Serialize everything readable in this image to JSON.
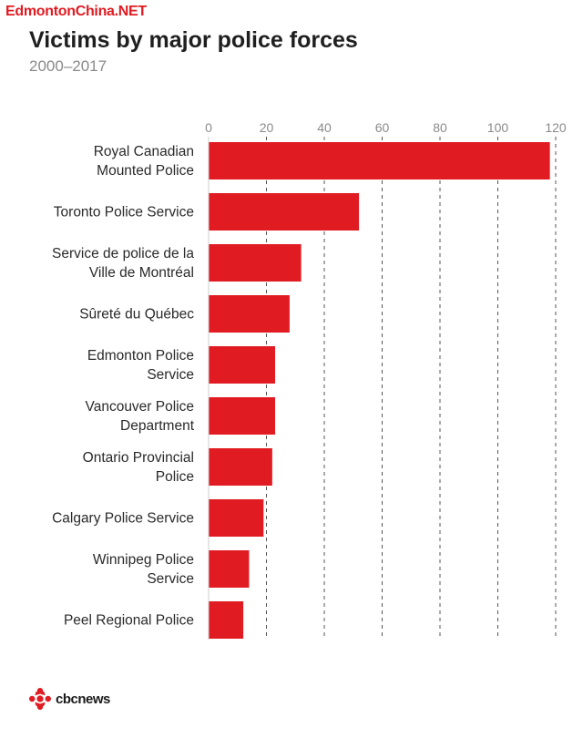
{
  "watermark": "EdmontonChina.NET",
  "footer": {
    "brand": "cbcnews"
  },
  "colors": {
    "bar": "#e01b22",
    "grid": "#555555",
    "axis_text": "#8a8a8a"
  },
  "chart_data": {
    "type": "bar",
    "orientation": "horizontal",
    "title": "Victims by major police forces",
    "subtitle": "2000–2017",
    "xlabel": "",
    "ylabel": "",
    "xlim": [
      0,
      120
    ],
    "xticks": [
      0,
      20,
      40,
      60,
      80,
      100,
      120
    ],
    "grid": true,
    "categories": [
      [
        "Royal Canadian",
        "Mounted Police"
      ],
      [
        "Toronto Police Service"
      ],
      [
        "Service de police de la",
        "Ville de Montréal"
      ],
      [
        "Sûreté du Québec"
      ],
      [
        "Edmonton Police",
        "Service"
      ],
      [
        "Vancouver Police",
        "Department"
      ],
      [
        "Ontario Provincial",
        "Police"
      ],
      [
        "Calgary Police Service"
      ],
      [
        "Winnipeg Police",
        "Service"
      ],
      [
        "Peel Regional Police"
      ]
    ],
    "values": [
      118,
      52,
      32,
      28,
      23,
      23,
      22,
      19,
      14,
      12
    ]
  }
}
